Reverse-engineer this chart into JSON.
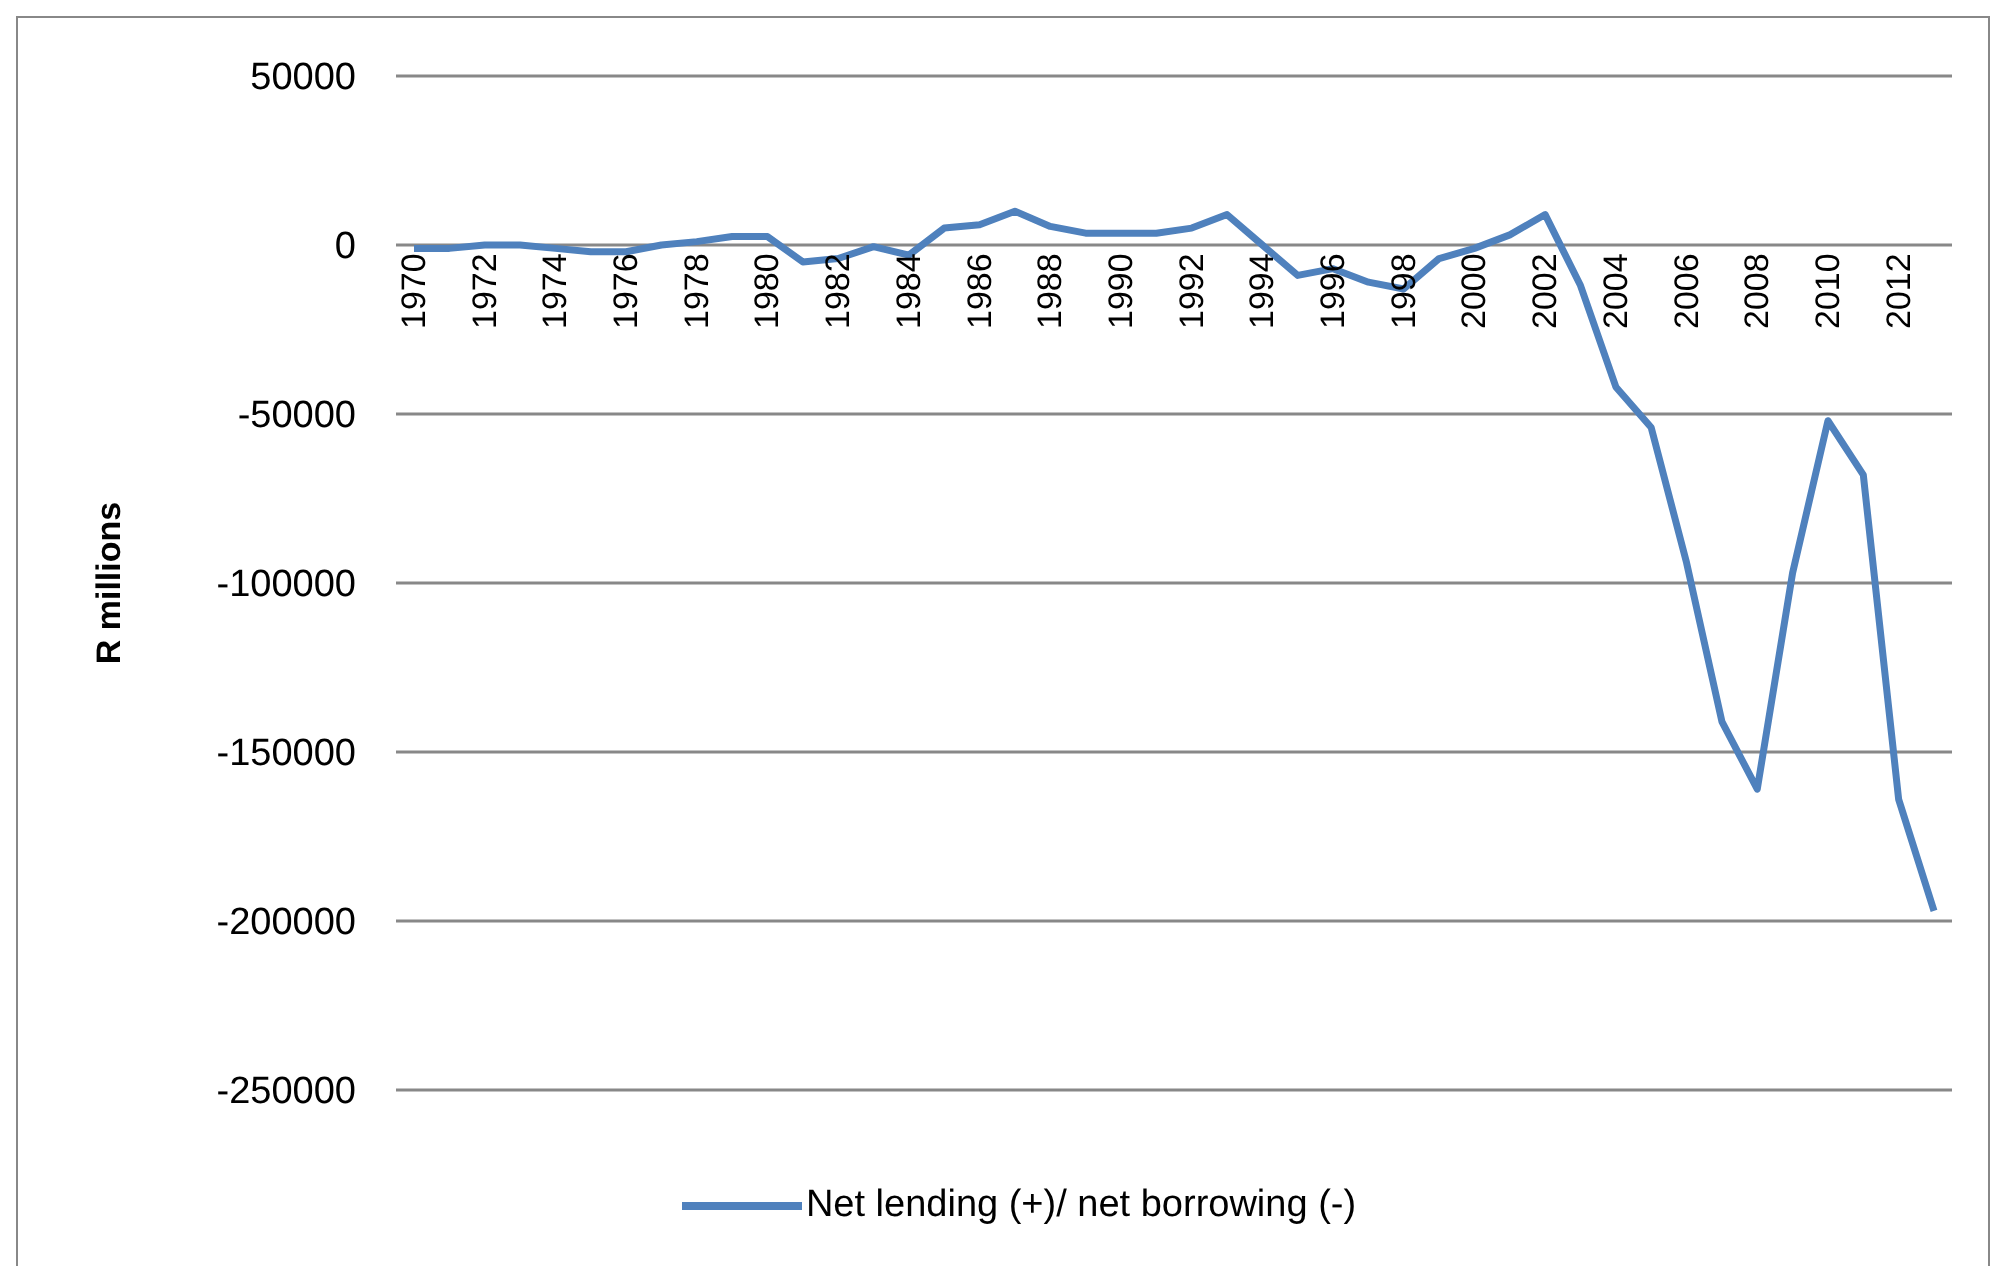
{
  "chart_data": {
    "type": "line",
    "ylabel": "R millions",
    "categories": [
      "1970",
      null,
      "1972",
      null,
      "1974",
      null,
      "1976",
      null,
      "1978",
      null,
      "1980",
      null,
      "1982",
      null,
      "1984",
      null,
      "1986",
      null,
      "1988",
      null,
      "1990",
      null,
      "1992",
      null,
      "1994",
      null,
      "1996",
      null,
      "1998",
      null,
      "2000",
      null,
      "2002",
      null,
      "2004",
      null,
      "2006",
      null,
      "2008",
      null,
      "2010",
      null,
      "2012",
      null
    ],
    "series": [
      {
        "name": "Net lending (+)/ net borrowing (-)",
        "color": "#4f81bd",
        "values": [
          -1000,
          -1000,
          0,
          0,
          -1000,
          -2000,
          -2000,
          0,
          1000,
          2500,
          2500,
          -5000,
          -4000,
          -500,
          -3000,
          5000,
          6000,
          10000,
          5500,
          3500,
          3500,
          3500,
          5000,
          9000,
          0,
          -9000,
          -7000,
          -11000,
          -13000,
          -4000,
          -1000,
          3000,
          9000,
          -12000,
          -42000,
          -54000,
          -94000,
          -141000,
          -161000,
          -97000,
          -52000,
          -68000,
          -164000,
          -197000
        ]
      }
    ],
    "ylim": [
      -250000,
      50000
    ],
    "yticks": [
      -250000,
      -200000,
      -150000,
      -100000,
      -50000,
      0,
      50000
    ],
    "grid": "y",
    "legend": "bottom",
    "marker": "none",
    "line_style": "solid"
  }
}
